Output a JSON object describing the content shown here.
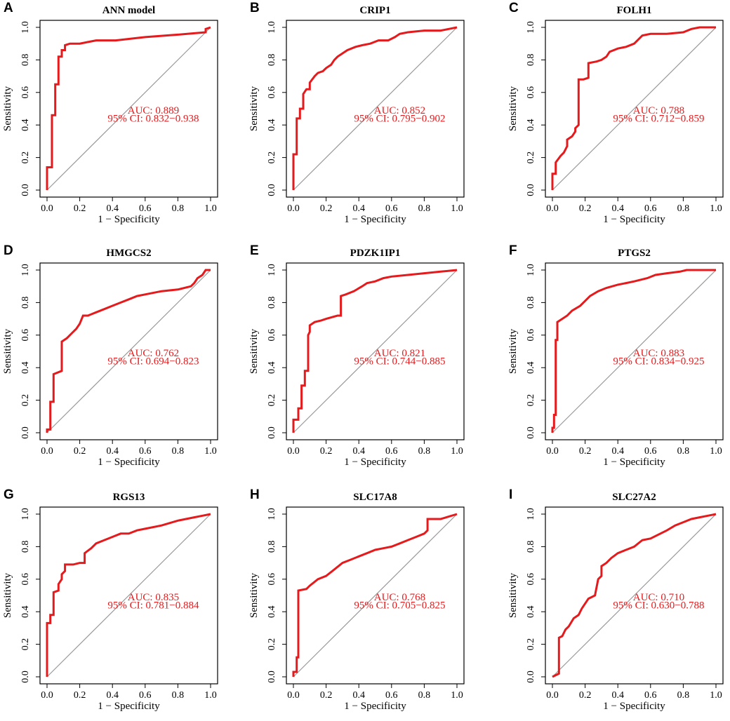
{
  "figure": {
    "xlabel": "1 − Specificity",
    "ylabel": "Sensitivity",
    "ticks": [
      "0.0",
      "0.2",
      "0.4",
      "0.6",
      "0.8",
      "1.0"
    ],
    "curve_color": "#e41a1c",
    "diagonal_color": "#999999"
  },
  "chart_data": [
    {
      "type": "line",
      "letter": "A",
      "title": "ANN model",
      "xlabel": "1 − Specificity",
      "ylabel": "Sensitivity",
      "xlim": [
        0,
        1
      ],
      "ylim": [
        0,
        1
      ],
      "auc_label": "AUC: 0.889",
      "ci_label": "95% CI: 0.832−0.938",
      "fpr": [
        0,
        0,
        0.03,
        0.03,
        0.05,
        0.05,
        0.07,
        0.07,
        0.09,
        0.09,
        0.11,
        0.11,
        0.14,
        0.2,
        0.25,
        0.3,
        0.42,
        0.6,
        0.8,
        0.97,
        0.97,
        1.0
      ],
      "tpr": [
        0,
        0.14,
        0.14,
        0.46,
        0.46,
        0.65,
        0.65,
        0.82,
        0.82,
        0.86,
        0.86,
        0.89,
        0.9,
        0.9,
        0.91,
        0.92,
        0.92,
        0.94,
        0.955,
        0.97,
        0.99,
        1.0
      ]
    },
    {
      "type": "line",
      "letter": "B",
      "title": "CRIP1",
      "xlabel": "1 − Specificity",
      "ylabel": "Sensitivity",
      "xlim": [
        0,
        1
      ],
      "ylim": [
        0,
        1
      ],
      "auc_label": "AUC: 0.852",
      "ci_label": "95% CI: 0.795−0.902",
      "fpr": [
        0,
        0,
        0.02,
        0.02,
        0.04,
        0.04,
        0.06,
        0.06,
        0.08,
        0.1,
        0.1,
        0.13,
        0.15,
        0.18,
        0.2,
        0.23,
        0.25,
        0.27,
        0.3,
        0.33,
        0.38,
        0.42,
        0.47,
        0.52,
        0.58,
        0.62,
        0.65,
        0.7,
        0.8,
        0.9,
        0.95,
        1.0
      ],
      "tpr": [
        0,
        0.22,
        0.22,
        0.44,
        0.44,
        0.5,
        0.5,
        0.59,
        0.62,
        0.62,
        0.66,
        0.7,
        0.72,
        0.73,
        0.75,
        0.77,
        0.8,
        0.82,
        0.84,
        0.86,
        0.88,
        0.89,
        0.9,
        0.92,
        0.92,
        0.94,
        0.96,
        0.97,
        0.98,
        0.98,
        0.99,
        1.0
      ]
    },
    {
      "type": "line",
      "letter": "C",
      "title": "FOLH1",
      "xlabel": "1 − Specificity",
      "ylabel": "Sensitivity",
      "xlim": [
        0,
        1
      ],
      "ylim": [
        0,
        1
      ],
      "auc_label": "AUC: 0.788",
      "ci_label": "95% CI: 0.712−0.859",
      "fpr": [
        0,
        0,
        0.02,
        0.02,
        0.05,
        0.07,
        0.09,
        0.09,
        0.12,
        0.14,
        0.14,
        0.16,
        0.16,
        0.19,
        0.22,
        0.22,
        0.27,
        0.3,
        0.33,
        0.35,
        0.4,
        0.45,
        0.5,
        0.55,
        0.6,
        0.7,
        0.8,
        0.85,
        0.9,
        1.0
      ],
      "tpr": [
        0,
        0.1,
        0.1,
        0.17,
        0.21,
        0.23,
        0.27,
        0.31,
        0.33,
        0.36,
        0.38,
        0.4,
        0.68,
        0.68,
        0.69,
        0.78,
        0.79,
        0.8,
        0.82,
        0.85,
        0.87,
        0.88,
        0.9,
        0.95,
        0.96,
        0.96,
        0.97,
        0.99,
        1.0,
        1.0
      ]
    },
    {
      "type": "line",
      "letter": "D",
      "title": "HMGCS2",
      "xlabel": "1 − Specificity",
      "ylabel": "Sensitivity",
      "xlim": [
        0,
        1
      ],
      "ylim": [
        0,
        1
      ],
      "auc_label": "AUC: 0.762",
      "ci_label": "95% CI: 0.694−0.823",
      "fpr": [
        0,
        0,
        0.02,
        0.02,
        0.04,
        0.04,
        0.09,
        0.09,
        0.12,
        0.15,
        0.18,
        0.2,
        0.22,
        0.25,
        0.3,
        0.35,
        0.4,
        0.45,
        0.5,
        0.55,
        0.6,
        0.7,
        0.8,
        0.88,
        0.9,
        0.92,
        0.95,
        0.97,
        1.0,
        1.0
      ],
      "tpr": [
        0,
        0.02,
        0.02,
        0.19,
        0.19,
        0.36,
        0.38,
        0.56,
        0.58,
        0.61,
        0.64,
        0.67,
        0.72,
        0.72,
        0.74,
        0.76,
        0.78,
        0.8,
        0.82,
        0.84,
        0.85,
        0.87,
        0.88,
        0.9,
        0.92,
        0.95,
        0.97,
        1.0,
        1.0,
        1.0
      ]
    },
    {
      "type": "line",
      "letter": "E",
      "title": "PDZK1IP1",
      "xlabel": "1 − Specificity",
      "ylabel": "Sensitivity",
      "xlim": [
        0,
        1
      ],
      "ylim": [
        0,
        1
      ],
      "auc_label": "AUC: 0.821",
      "ci_label": "95% CI: 0.744−0.885",
      "fpr": [
        0,
        0,
        0.03,
        0.03,
        0.05,
        0.05,
        0.07,
        0.07,
        0.09,
        0.09,
        0.1,
        0.1,
        0.13,
        0.17,
        0.2,
        0.27,
        0.29,
        0.29,
        0.32,
        0.37,
        0.42,
        0.45,
        0.5,
        0.55,
        0.6,
        0.7,
        0.8,
        0.9,
        1.0
      ],
      "tpr": [
        0,
        0.08,
        0.08,
        0.15,
        0.15,
        0.29,
        0.29,
        0.38,
        0.38,
        0.6,
        0.62,
        0.66,
        0.68,
        0.69,
        0.7,
        0.72,
        0.72,
        0.84,
        0.85,
        0.87,
        0.9,
        0.92,
        0.93,
        0.95,
        0.96,
        0.97,
        0.98,
        0.99,
        1.0
      ]
    },
    {
      "type": "line",
      "letter": "F",
      "title": "PTGS2",
      "xlabel": "1 − Specificity",
      "ylabel": "Sensitivity",
      "xlim": [
        0,
        1
      ],
      "ylim": [
        0,
        1
      ],
      "auc_label": "AUC: 0.883",
      "ci_label": "95% CI: 0.834−0.925",
      "fpr": [
        0,
        0,
        0.01,
        0.01,
        0.02,
        0.02,
        0.03,
        0.03,
        0.06,
        0.09,
        0.12,
        0.17,
        0.2,
        0.23,
        0.28,
        0.33,
        0.4,
        0.45,
        0.5,
        0.58,
        0.63,
        0.7,
        0.78,
        0.82,
        0.9,
        1.0
      ],
      "tpr": [
        0,
        0.03,
        0.03,
        0.11,
        0.11,
        0.57,
        0.57,
        0.68,
        0.7,
        0.72,
        0.75,
        0.78,
        0.81,
        0.84,
        0.87,
        0.89,
        0.91,
        0.92,
        0.93,
        0.95,
        0.97,
        0.98,
        0.99,
        1.0,
        1.0,
        1.0
      ]
    },
    {
      "type": "line",
      "letter": "G",
      "title": "RGS13",
      "xlabel": "1 − Specificity",
      "ylabel": "Sensitivity",
      "xlim": [
        0,
        1
      ],
      "ylim": [
        0,
        1
      ],
      "auc_label": "AUC: 0.835",
      "ci_label": "95% CI: 0.781−0.884",
      "fpr": [
        0,
        0,
        0.02,
        0.02,
        0.04,
        0.04,
        0.07,
        0.07,
        0.09,
        0.09,
        0.11,
        0.11,
        0.16,
        0.2,
        0.23,
        0.23,
        0.27,
        0.3,
        0.35,
        0.4,
        0.45,
        0.5,
        0.55,
        0.6,
        0.7,
        0.8,
        0.9,
        0.95,
        1.0
      ],
      "tpr": [
        0,
        0.33,
        0.33,
        0.38,
        0.38,
        0.52,
        0.53,
        0.57,
        0.6,
        0.63,
        0.65,
        0.69,
        0.69,
        0.7,
        0.7,
        0.76,
        0.79,
        0.82,
        0.84,
        0.86,
        0.88,
        0.88,
        0.9,
        0.91,
        0.93,
        0.96,
        0.98,
        0.99,
        1.0
      ]
    },
    {
      "type": "line",
      "letter": "H",
      "title": "SLC17A8",
      "xlabel": "1 − Specificity",
      "ylabel": "Sensitivity",
      "xlim": [
        0,
        1
      ],
      "ylim": [
        0,
        1
      ],
      "auc_label": "AUC: 0.768",
      "ci_label": "95% CI: 0.705−0.825",
      "fpr": [
        0,
        0,
        0.02,
        0.02,
        0.03,
        0.03,
        0.08,
        0.1,
        0.15,
        0.2,
        0.25,
        0.3,
        0.35,
        0.4,
        0.45,
        0.5,
        0.55,
        0.6,
        0.65,
        0.7,
        0.75,
        0.8,
        0.82,
        0.82,
        0.9,
        1.0
      ],
      "tpr": [
        0,
        0.03,
        0.03,
        0.12,
        0.12,
        0.53,
        0.54,
        0.56,
        0.6,
        0.62,
        0.66,
        0.7,
        0.72,
        0.74,
        0.76,
        0.78,
        0.79,
        0.8,
        0.82,
        0.84,
        0.86,
        0.88,
        0.9,
        0.97,
        0.97,
        1.0
      ]
    },
    {
      "type": "line",
      "letter": "I",
      "title": "SLC27A2",
      "xlabel": "1 − Specificity",
      "ylabel": "Sensitivity",
      "xlim": [
        0,
        1
      ],
      "ylim": [
        0,
        1
      ],
      "auc_label": "AUC: 0.710",
      "ci_label": "95% CI: 0.630−0.788",
      "fpr": [
        0,
        0.04,
        0.04,
        0.06,
        0.08,
        0.1,
        0.13,
        0.16,
        0.18,
        0.2,
        0.22,
        0.26,
        0.28,
        0.3,
        0.3,
        0.33,
        0.36,
        0.4,
        0.45,
        0.5,
        0.55,
        0.6,
        0.7,
        0.75,
        0.8,
        0.85,
        0.9,
        0.95,
        1.0
      ],
      "tpr": [
        0,
        0.02,
        0.24,
        0.25,
        0.29,
        0.31,
        0.36,
        0.38,
        0.42,
        0.45,
        0.48,
        0.5,
        0.6,
        0.62,
        0.68,
        0.7,
        0.73,
        0.76,
        0.78,
        0.8,
        0.84,
        0.85,
        0.9,
        0.93,
        0.95,
        0.97,
        0.98,
        0.99,
        1.0
      ]
    }
  ]
}
